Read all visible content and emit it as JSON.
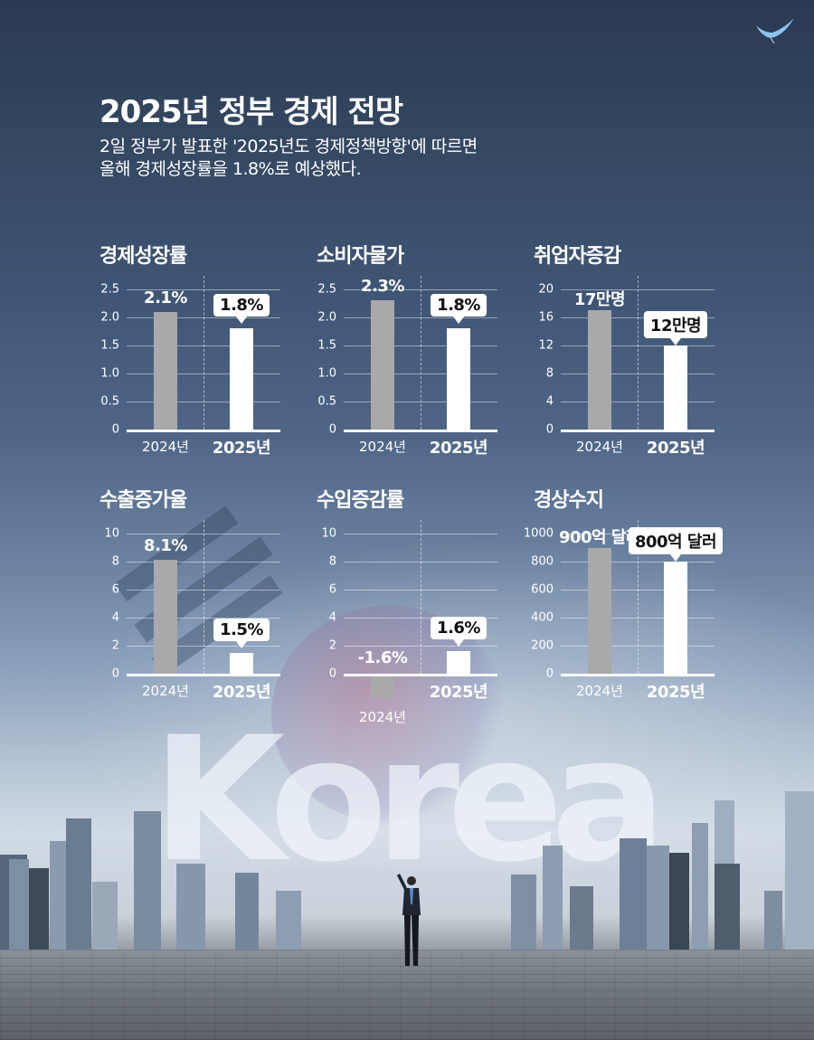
{
  "header": {
    "title": "2025년 정부 경제 전망",
    "subtitle_line1": "2일 정부가 발표한 '2025년도 경제정책방향'에 따르면",
    "subtitle_line2": "올해 경제성장률을 1.8%로 예상했다."
  },
  "background": {
    "watermark_text": "Korea",
    "logo_icon": "bird-wing-logo-icon"
  },
  "colors": {
    "bar_2024": "#a9a9a9",
    "bar_2025": "#ffffff",
    "text": "#ffffff",
    "callout_text": "#111111"
  },
  "charts": [
    {
      "title": "경제성장률",
      "yticks": [
        "0",
        "0.5",
        "1.0",
        "1.5",
        "2.0",
        "2.5"
      ],
      "ymax": 2.5,
      "prev": {
        "year": "2024년",
        "value": 2.1,
        "label": "2.1%"
      },
      "curr": {
        "year": "2025년",
        "value": 1.8,
        "label": "1.8%"
      }
    },
    {
      "title": "소비자물가",
      "yticks": [
        "0",
        "0.5",
        "1.0",
        "1.5",
        "2.0",
        "2.5"
      ],
      "ymax": 2.5,
      "prev": {
        "year": "2024년",
        "value": 2.3,
        "label": "2.3%"
      },
      "curr": {
        "year": "2025년",
        "value": 1.8,
        "label": "1.8%"
      }
    },
    {
      "title": "취업자증감",
      "yticks": [
        "0",
        "4",
        "8",
        "12",
        "16",
        "20"
      ],
      "ymax": 20,
      "prev": {
        "year": "2024년",
        "value": 17,
        "label": "17만명"
      },
      "curr": {
        "year": "2025년",
        "value": 12,
        "label": "12만명"
      }
    },
    {
      "title": "수출증가율",
      "yticks": [
        "0",
        "2",
        "4",
        "6",
        "8",
        "10"
      ],
      "ymax": 10,
      "prev": {
        "year": "2024년",
        "value": 8.1,
        "label": "8.1%"
      },
      "curr": {
        "year": "2025년",
        "value": 1.5,
        "label": "1.5%"
      }
    },
    {
      "title": "수입증감률",
      "yticks": [
        "0",
        "2",
        "4",
        "6",
        "8",
        "10"
      ],
      "ymax": 10,
      "prev": {
        "year": "2024년",
        "value": -1.6,
        "label": "-1.6%"
      },
      "curr": {
        "year": "2025년",
        "value": 1.6,
        "label": "1.6%"
      }
    },
    {
      "title": "경상수지",
      "yticks": [
        "0",
        "200",
        "400",
        "600",
        "800",
        "1000"
      ],
      "ymax": 1000,
      "prev": {
        "year": "2024년",
        "value": 900,
        "label": "900억 달러"
      },
      "curr": {
        "year": "2025년",
        "value": 800,
        "label": "800억 달러"
      }
    }
  ],
  "chart_data": [
    {
      "type": "bar",
      "title": "경제성장률",
      "categories": [
        "2024년",
        "2025년"
      ],
      "values": [
        2.1,
        1.8
      ],
      "unit": "%",
      "ylim": [
        0,
        2.5
      ],
      "yticks": [
        0,
        0.5,
        1.0,
        1.5,
        2.0,
        2.5
      ],
      "grid": true
    },
    {
      "type": "bar",
      "title": "소비자물가",
      "categories": [
        "2024년",
        "2025년"
      ],
      "values": [
        2.3,
        1.8
      ],
      "unit": "%",
      "ylim": [
        0,
        2.5
      ],
      "yticks": [
        0,
        0.5,
        1.0,
        1.5,
        2.0,
        2.5
      ],
      "grid": true
    },
    {
      "type": "bar",
      "title": "취업자증감",
      "categories": [
        "2024년",
        "2025년"
      ],
      "values": [
        17,
        12
      ],
      "unit": "만명",
      "ylim": [
        0,
        20
      ],
      "yticks": [
        0,
        4,
        8,
        12,
        16,
        20
      ],
      "grid": true
    },
    {
      "type": "bar",
      "title": "수출증가율",
      "categories": [
        "2024년",
        "2025년"
      ],
      "values": [
        8.1,
        1.5
      ],
      "unit": "%",
      "ylim": [
        0,
        10
      ],
      "yticks": [
        0,
        2,
        4,
        6,
        8,
        10
      ],
      "grid": true
    },
    {
      "type": "bar",
      "title": "수입증감률",
      "categories": [
        "2024년",
        "2025년"
      ],
      "values": [
        -1.6,
        1.6
      ],
      "unit": "%",
      "ylim": [
        -2,
        10
      ],
      "yticks": [
        0,
        2,
        4,
        6,
        8,
        10
      ],
      "grid": true
    },
    {
      "type": "bar",
      "title": "경상수지",
      "categories": [
        "2024년",
        "2025년"
      ],
      "values": [
        900,
        800
      ],
      "unit": "억 달러",
      "ylim": [
        0,
        1000
      ],
      "yticks": [
        0,
        200,
        400,
        600,
        800,
        1000
      ],
      "grid": true
    }
  ]
}
